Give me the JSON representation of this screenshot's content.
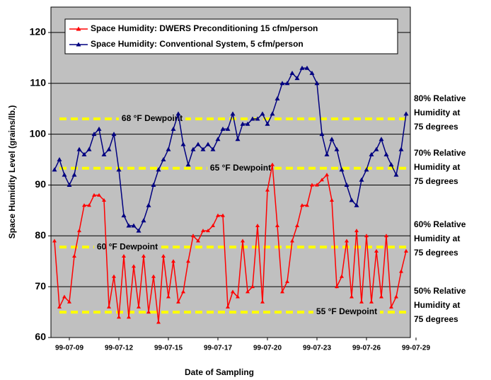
{
  "chart_data": {
    "type": "line",
    "x_label": "Date of Sampling",
    "y_label": "Space Humidity Level (grains/lb.)",
    "categories": [
      null,
      null,
      null,
      "99-07-09",
      null,
      null,
      null,
      null,
      null,
      null,
      null,
      null,
      null,
      "99-07-12",
      null,
      null,
      null,
      null,
      null,
      null,
      null,
      null,
      null,
      "99-07-15",
      null,
      null,
      null,
      null,
      null,
      null,
      null,
      null,
      null,
      "99-07-17",
      null,
      null,
      null,
      null,
      null,
      null,
      null,
      null,
      null,
      "99-07-20",
      null,
      null,
      null,
      null,
      null,
      null,
      null,
      null,
      null,
      "99-07-23",
      null,
      null,
      null,
      null,
      null,
      null,
      null,
      null,
      null,
      "99-07-26",
      null,
      null,
      null,
      null,
      null,
      null,
      null,
      null,
      null,
      "99-07-29"
    ],
    "series": [
      {
        "name": "Space Humidity: DWERS Preconditioning 15 cfm/person",
        "color": "#ff0000",
        "values": [
          79,
          66,
          68,
          67,
          76,
          81,
          86,
          86,
          88,
          88,
          87,
          66,
          72,
          64,
          76,
          64,
          74,
          66,
          76,
          65,
          72,
          63,
          76,
          68,
          75,
          67,
          69,
          75,
          80,
          79,
          81,
          81,
          82,
          84,
          84,
          66,
          69,
          68,
          79,
          69,
          70,
          82,
          67,
          89,
          94,
          82,
          69,
          71,
          79,
          82,
          86,
          86,
          90,
          90,
          91,
          92,
          87,
          70,
          72,
          79,
          68,
          81,
          67,
          80,
          67,
          77,
          68,
          80,
          66,
          68,
          73,
          77,
          null,
          null
        ]
      },
      {
        "name": "Space Humidity: Conventional System, 5 cfm/person",
        "color": "#000080",
        "values": [
          93,
          95,
          92,
          90,
          92,
          97,
          96,
          97,
          100,
          101,
          96,
          97,
          100,
          93,
          84,
          82,
          82,
          81,
          83,
          86,
          90,
          93,
          95,
          97,
          101,
          104,
          98,
          94,
          97,
          98,
          97,
          98,
          97,
          99,
          101,
          101,
          104,
          99,
          102,
          102,
          103,
          103,
          104,
          102,
          104,
          107,
          110,
          110,
          112,
          111,
          113,
          113,
          112,
          110,
          100,
          96,
          99,
          97,
          93,
          90,
          87,
          86,
          91,
          93,
          96,
          97,
          99,
          96,
          94,
          92,
          97,
          104,
          null,
          null
        ]
      }
    ],
    "ylim": [
      60,
      125
    ],
    "yticks": [
      60,
      70,
      80,
      90,
      100,
      110,
      120
    ],
    "grid": true,
    "background": "#c0c0c0",
    "reference_lines": [
      {
        "value": 103,
        "label": "68 °F Dewpoint",
        "color": "#ffff00"
      },
      {
        "value": 93.3,
        "label": "65 °F Dewpoint",
        "color": "#ffff00"
      },
      {
        "value": 77.8,
        "label": "60 °F Dewpoint",
        "color": "#ffff00"
      },
      {
        "value": 65,
        "label": "55 °F Dewpoint",
        "color": "#ffff00"
      }
    ],
    "annotations": [
      [
        "80% Relative",
        "Humidity at",
        "75 degrees"
      ],
      [
        "70% Relative",
        "Humidity at",
        "75 degrees"
      ],
      [
        "60% Relative",
        "Humidity at",
        "75 degrees"
      ],
      [
        "50% Relative",
        "Humidity at",
        "75 degrees"
      ]
    ]
  }
}
